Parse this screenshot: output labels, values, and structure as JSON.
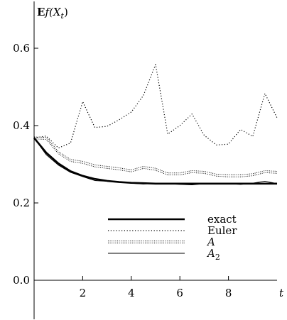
{
  "chart_data": {
    "type": "line",
    "title": "",
    "ylabel": "Ef(X_t)",
    "ylabel_parts": {
      "bold": "E",
      "rest": "f(X",
      "sub": "t",
      "close": ")"
    },
    "xlabel": "t",
    "xlim": [
      0,
      10
    ],
    "ylim": [
      0,
      0.65
    ],
    "xticks": [
      2,
      4,
      6,
      8
    ],
    "xtick_labels": [
      "2",
      "4",
      "6",
      "8"
    ],
    "yticks": [
      0.0,
      0.2,
      0.4,
      0.6
    ],
    "ytick_labels": [
      "0.0",
      "0.2",
      "0.4",
      "0.6"
    ],
    "grid": false,
    "legend_position": "lower-center",
    "series": [
      {
        "name": "exact",
        "style": "thick-solid",
        "x": [
          0,
          0.5,
          1,
          1.5,
          2,
          2.5,
          3,
          3.5,
          4,
          4.5,
          5,
          5.5,
          6,
          6.5,
          7,
          7.5,
          8,
          8.5,
          9,
          9.5,
          10
        ],
        "y": [
          0.368,
          0.33,
          0.302,
          0.282,
          0.27,
          0.262,
          0.257,
          0.254,
          0.252,
          0.251,
          0.25,
          0.25,
          0.25,
          0.25,
          0.25,
          0.25,
          0.25,
          0.25,
          0.25,
          0.25,
          0.25
        ]
      },
      {
        "name": "Euler",
        "style": "dotted",
        "x": [
          0,
          0.5,
          1,
          1.5,
          2,
          2.5,
          3,
          3.5,
          4,
          4.5,
          5,
          5.5,
          6,
          6.5,
          7,
          7.5,
          8,
          8.5,
          9,
          9.5,
          10
        ],
        "y": [
          0.368,
          0.373,
          0.342,
          0.355,
          0.462,
          0.395,
          0.398,
          0.415,
          0.435,
          0.478,
          0.558,
          0.378,
          0.4,
          0.43,
          0.375,
          0.35,
          0.352,
          0.39,
          0.372,
          0.483,
          0.42
        ]
      },
      {
        "name": "A",
        "style": "thin-double",
        "x": [
          0,
          0.5,
          1,
          1.5,
          2,
          2.5,
          3,
          3.5,
          4,
          4.5,
          5,
          5.5,
          6,
          6.5,
          7,
          7.5,
          8,
          8.5,
          9,
          9.5,
          10
        ],
        "y": [
          0.368,
          0.367,
          0.33,
          0.31,
          0.305,
          0.296,
          0.292,
          0.288,
          0.283,
          0.292,
          0.287,
          0.275,
          0.275,
          0.281,
          0.279,
          0.272,
          0.27,
          0.27,
          0.273,
          0.281,
          0.279
        ]
      },
      {
        "name": "A_2",
        "style": "thin-solid",
        "x": [
          0,
          0.5,
          1,
          1.5,
          2,
          2.5,
          3,
          3.5,
          4,
          4.5,
          5,
          5.5,
          6,
          6.5,
          7,
          7.5,
          8,
          8.5,
          9,
          9.5,
          10
        ],
        "y": [
          0.368,
          0.325,
          0.298,
          0.279,
          0.268,
          0.258,
          0.256,
          0.255,
          0.251,
          0.249,
          0.251,
          0.25,
          0.248,
          0.247,
          0.25,
          0.249,
          0.25,
          0.248,
          0.251,
          0.256,
          0.25
        ]
      }
    ],
    "legend": [
      {
        "label": "exact",
        "series": "exact"
      },
      {
        "label": "Euler",
        "series": "Euler"
      },
      {
        "label": "A",
        "series": "A"
      },
      {
        "label": "A",
        "sub": "2",
        "series": "A_2"
      }
    ]
  }
}
